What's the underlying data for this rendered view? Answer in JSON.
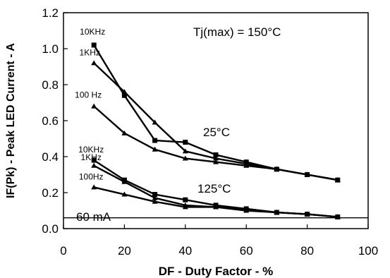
{
  "chart_data": {
    "type": "line",
    "xlabel": "DF  -  Duty Factor  -  %",
    "ylabel": "IF(Pk)  -  Peak LED  Current  -  A",
    "xlim": [
      0,
      100
    ],
    "ylim": [
      0,
      1.2
    ],
    "x_ticks": [
      0,
      20,
      40,
      60,
      80,
      100
    ],
    "y_ticks": [
      0.0,
      0.2,
      0.4,
      0.6,
      0.8,
      1.0,
      1.2
    ],
    "x_tick_labels": [
      "0",
      "20",
      "40",
      "60",
      "80",
      "100"
    ],
    "y_tick_labels": [
      "0.0",
      "0.2",
      "0.4",
      "0.6",
      "0.8",
      "1.0",
      "1.2"
    ],
    "grid": false,
    "annotations": {
      "tj_max": "Tj(max) = 150°C",
      "group_25": "25°C",
      "group_125": "125°C",
      "limit_60ma": "60 mA"
    },
    "reference_line": {
      "y": 0.06,
      "label": "60 mA"
    },
    "series": [
      {
        "name": "10KHz",
        "group": "25°C",
        "marker": "square",
        "x": [
          10,
          20,
          30,
          40,
          50,
          60,
          70,
          80,
          90
        ],
        "y": [
          1.02,
          0.74,
          0.49,
          0.48,
          0.41,
          0.37,
          0.33,
          0.3,
          0.27
        ]
      },
      {
        "name": "1KHz",
        "group": "25°C",
        "marker": "triangle",
        "x": [
          10,
          20,
          30,
          40,
          50,
          60,
          70,
          80,
          90
        ],
        "y": [
          0.92,
          0.76,
          0.59,
          0.43,
          0.39,
          0.36,
          0.33,
          0.3,
          0.27
        ]
      },
      {
        "name": "100 Hz",
        "group": "25°C",
        "marker": "triangle",
        "x": [
          10,
          20,
          30,
          40,
          50,
          60,
          70,
          80,
          90
        ],
        "y": [
          0.68,
          0.53,
          0.44,
          0.39,
          0.37,
          0.35,
          0.33,
          0.3,
          0.27
        ]
      },
      {
        "name": "10KHz",
        "group": "125°C",
        "marker": "square",
        "x": [
          10,
          20,
          30,
          40,
          50,
          60,
          70,
          80,
          90
        ],
        "y": [
          0.38,
          0.27,
          0.19,
          0.16,
          0.13,
          0.11,
          0.09,
          0.08,
          0.065
        ]
      },
      {
        "name": "1KHz",
        "group": "125°C",
        "marker": "triangle",
        "x": [
          10,
          20,
          30,
          40,
          50,
          60,
          70,
          80,
          90
        ],
        "y": [
          0.35,
          0.26,
          0.17,
          0.13,
          0.12,
          0.11,
          0.09,
          0.08,
          0.065
        ]
      },
      {
        "name": "100Hz",
        "group": "125°C",
        "marker": "triangle",
        "x": [
          10,
          20,
          30,
          40,
          50,
          60,
          70,
          80,
          90
        ],
        "y": [
          0.23,
          0.19,
          0.15,
          0.12,
          0.12,
          0.1,
          0.09,
          0.08,
          0.065
        ]
      }
    ]
  }
}
